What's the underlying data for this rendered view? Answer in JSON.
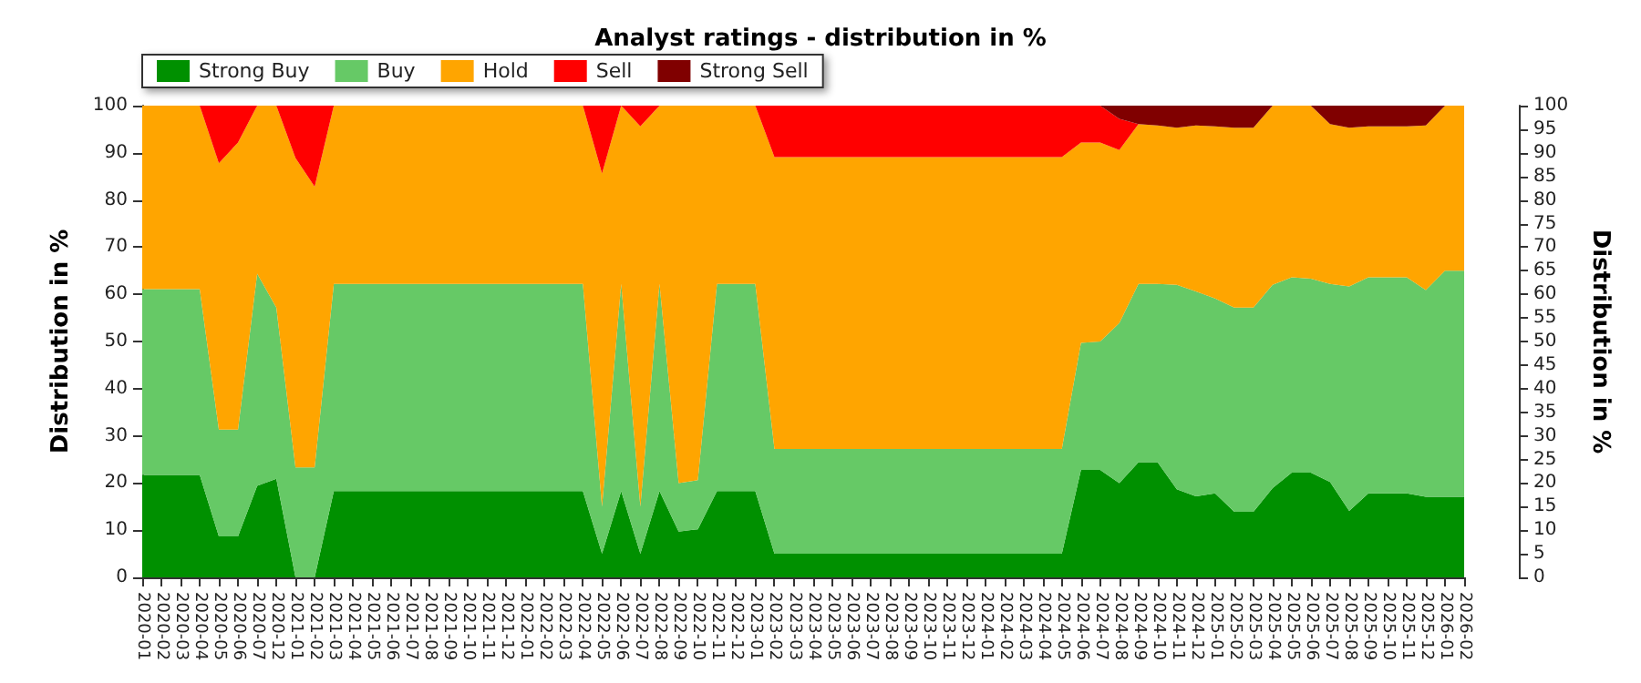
{
  "chart_data": {
    "type": "area",
    "title": "Analyst ratings - distribution in %",
    "ylabel": "Distribution in %",
    "y2label": "Distribution in %",
    "categories": [
      "2020-01",
      "2020-02",
      "2020-03",
      "2020-04",
      "2020-05",
      "2020-06",
      "2020-07",
      "2020-12",
      "2021-01",
      "2021-02",
      "2021-03",
      "2021-04",
      "2021-05",
      "2021-06",
      "2021-07",
      "2021-08",
      "2021-09",
      "2021-10",
      "2021-11",
      "2021-12",
      "2022-01",
      "2022-02",
      "2022-03",
      "2022-04",
      "2022-05",
      "2022-06",
      "2022-07",
      "2022-08",
      "2022-09",
      "2022-10",
      "2022-11",
      "2022-12",
      "2023-01",
      "2023-02",
      "2023-03",
      "2023-04",
      "2023-05",
      "2023-06",
      "2023-07",
      "2023-08",
      "2023-09",
      "2023-10",
      "2023-11",
      "2023-12",
      "2024-01",
      "2024-02",
      "2024-03",
      "2024-04",
      "2024-05",
      "2024-06",
      "2024-07",
      "2024-08",
      "2024-09",
      "2024-10",
      "2024-11",
      "2024-12",
      "2025-01",
      "2025-02",
      "2025-03",
      "2025-04",
      "2025-05",
      "2025-06",
      "2025-07",
      "2025-08",
      "2025-09",
      "2025-10",
      "2025-11",
      "2025-12",
      "2026-01",
      "2026-02"
    ],
    "stacked": true,
    "series": [
      {
        "name": "Strong Buy",
        "color": "#009000",
        "values": [
          21.7,
          21.7,
          21.7,
          21.7,
          8.7,
          8.7,
          19.4,
          20.9,
          0,
          0,
          18.3,
          18.3,
          18.3,
          18.3,
          18.3,
          18.3,
          18.3,
          18.3,
          18.3,
          18.3,
          18.3,
          18.3,
          18.3,
          18.3,
          5,
          18.3,
          5,
          18.3,
          9.7,
          10.2,
          18.3,
          18.3,
          18.3,
          5,
          5,
          5,
          5,
          5,
          5,
          5,
          5,
          5,
          5,
          5,
          5,
          5,
          5,
          5,
          5,
          22.8,
          22.8,
          20,
          24.4,
          24.4,
          18.7,
          17.2,
          17.8,
          13.9,
          13.9,
          18.9,
          22.2,
          22.2,
          20.2,
          14.1,
          17.8,
          17.8,
          17.8,
          17.1,
          17.1,
          17.1
        ]
      },
      {
        "name": "Buy",
        "color": "#66c966",
        "values": [
          39.4,
          39.4,
          39.4,
          39.4,
          22.6,
          22.6,
          45,
          36.3,
          23.3,
          23.3,
          43.9,
          43.9,
          43.9,
          43.9,
          43.9,
          43.9,
          43.9,
          43.9,
          43.9,
          43.9,
          43.9,
          43.9,
          43.9,
          43.9,
          10,
          43.9,
          10,
          43.9,
          10.3,
          10.4,
          43.9,
          43.9,
          43.9,
          22.2,
          22.2,
          22.2,
          22.2,
          22.2,
          22.2,
          22.2,
          22.2,
          22.2,
          22.2,
          22.2,
          22.2,
          22.2,
          22.2,
          22.2,
          22.2,
          26.9,
          27.2,
          33.9,
          37.8,
          37.8,
          43.3,
          43.4,
          41.3,
          43.3,
          43.3,
          43.1,
          41.4,
          41.1,
          42,
          47.6,
          45.8,
          45.8,
          45.8,
          43.8,
          47.9,
          47.9
        ]
      },
      {
        "name": "Hold",
        "color": "#ffa500",
        "values": [
          38.9,
          38.9,
          38.9,
          38.9,
          56.5,
          60.9,
          35.6,
          42.8,
          65.6,
          59.5,
          37.8,
          37.8,
          37.8,
          37.8,
          37.8,
          37.8,
          37.8,
          37.8,
          37.8,
          37.8,
          37.8,
          37.8,
          37.8,
          37.8,
          70.6,
          37.8,
          80.6,
          37.8,
          80,
          79.4,
          37.8,
          37.8,
          37.8,
          61.9,
          61.9,
          61.9,
          61.9,
          61.9,
          61.9,
          61.9,
          61.9,
          61.9,
          61.9,
          61.9,
          61.9,
          61.9,
          61.9,
          61.9,
          61.9,
          42.5,
          42.2,
          36.7,
          33.9,
          33.6,
          33.3,
          35.2,
          36.5,
          38.1,
          38.1,
          38,
          36.4,
          36.7,
          33.9,
          33.6,
          32,
          32,
          32,
          34.9,
          35,
          35
        ]
      },
      {
        "name": "Sell",
        "color": "#ff0000",
        "values": [
          0,
          0,
          0,
          0,
          12.2,
          7.8,
          0,
          0,
          11.1,
          17.2,
          0,
          0,
          0,
          0,
          0,
          0,
          0,
          0,
          0,
          0,
          0,
          0,
          0,
          0,
          14.4,
          0,
          4.4,
          0,
          0,
          0,
          0,
          0,
          0,
          10.9,
          10.9,
          10.9,
          10.9,
          10.9,
          10.9,
          10.9,
          10.9,
          10.9,
          10.9,
          10.9,
          10.9,
          10.9,
          10.9,
          10.9,
          10.9,
          7.8,
          7.8,
          6.6,
          0,
          0,
          0,
          0,
          0,
          0,
          0,
          0,
          0,
          0,
          0,
          0,
          0,
          0,
          0,
          0,
          0,
          0
        ]
      },
      {
        "name": "Strong Sell",
        "color": "#800000",
        "values": [
          0,
          0,
          0,
          0,
          0,
          0,
          0,
          0,
          0,
          0,
          0,
          0,
          0,
          0,
          0,
          0,
          0,
          0,
          0,
          0,
          0,
          0,
          0,
          0,
          0,
          0,
          0,
          0,
          0,
          0,
          0,
          0,
          0,
          0,
          0,
          0,
          0,
          0,
          0,
          0,
          0,
          0,
          0,
          0,
          0,
          0,
          0,
          0,
          0,
          0,
          0,
          2.8,
          3.9,
          4.2,
          4.7,
          4.2,
          4.4,
          4.7,
          4.7,
          0,
          0,
          0,
          3.9,
          4.7,
          4.4,
          4.4,
          4.4,
          4.2,
          0,
          0
        ]
      }
    ],
    "ylim": [
      0,
      100
    ],
    "yticks": [
      0,
      10,
      20,
      30,
      40,
      50,
      60,
      70,
      80,
      90,
      100
    ],
    "y2lim": [
      0,
      100
    ],
    "y2ticks": [
      0,
      5,
      10,
      15,
      20,
      25,
      30,
      35,
      40,
      45,
      50,
      55,
      60,
      65,
      70,
      75,
      80,
      85,
      90,
      95,
      100
    ],
    "grid": "y",
    "legend": "top left"
  }
}
